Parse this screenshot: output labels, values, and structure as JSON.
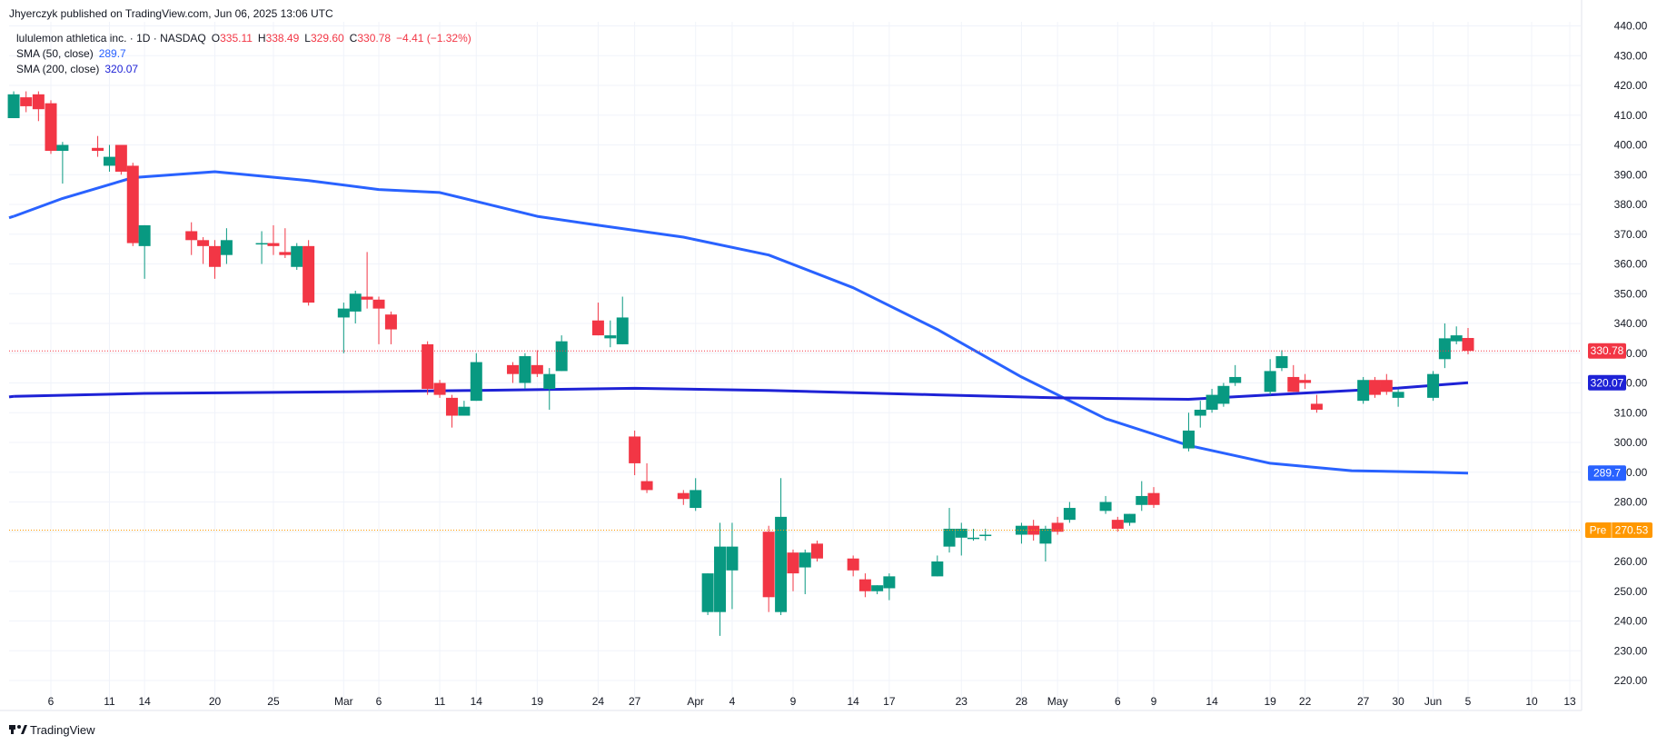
{
  "header": {
    "published": "Jhyerczyk published on TradingView.com, Jun 06, 2025 13:06 UTC",
    "symbol_line": "lululemon athletica inc. · 1D · NASDAQ",
    "ohlc": {
      "open": "335.11",
      "high": "338.49",
      "low": "329.60",
      "close": "330.78",
      "change": "−4.41 (−1.32%)"
    },
    "ohlc_prefixes": {
      "open": "O",
      "high": "H",
      "low": "L",
      "close": "C"
    },
    "sma50_label": "SMA (50, close)",
    "sma50_value": "289.7",
    "sma200_label": "SMA (200, close)",
    "sma200_value": "320.07"
  },
  "footer": {
    "logo_text": "TradingView"
  },
  "colors": {
    "up": "#26a69a",
    "down": "#f23645",
    "sma50": "#2962ff",
    "sma200": "#1e22d6",
    "last": "#f23645",
    "pre": "#ff9800",
    "grid": "#f0f3fa",
    "up_body": "#089981"
  },
  "tags": {
    "last": "330.78",
    "sma200": "320.07",
    "sma50": "289.7",
    "pre_label": "Pre",
    "pre_value": "270.53"
  },
  "chart_data": {
    "type": "candlestick",
    "title": "lululemon athletica inc. · 1D · NASDAQ",
    "ylim": [
      215,
      442
    ],
    "y_ticks": [
      220,
      230,
      240,
      250,
      260,
      270,
      280,
      290,
      300,
      310,
      320,
      330,
      340,
      350,
      360,
      370,
      380,
      390,
      400,
      410,
      420,
      430,
      440
    ],
    "x_ticks": [
      {
        "label": "6",
        "date": "2025-02-06"
      },
      {
        "label": "11",
        "date": "2025-02-11"
      },
      {
        "label": "14",
        "date": "2025-02-14"
      },
      {
        "label": "20",
        "date": "2025-02-20"
      },
      {
        "label": "25",
        "date": "2025-02-25"
      },
      {
        "label": "Mar",
        "date": "2025-03-03"
      },
      {
        "label": "6",
        "date": "2025-03-06"
      },
      {
        "label": "11",
        "date": "2025-03-11"
      },
      {
        "label": "14",
        "date": "2025-03-14"
      },
      {
        "label": "19",
        "date": "2025-03-19"
      },
      {
        "label": "24",
        "date": "2025-03-24"
      },
      {
        "label": "27",
        "date": "2025-03-27"
      },
      {
        "label": "Apr",
        "date": "2025-04-01"
      },
      {
        "label": "4",
        "date": "2025-04-04"
      },
      {
        "label": "9",
        "date": "2025-04-09"
      },
      {
        "label": "14",
        "date": "2025-04-14"
      },
      {
        "label": "17",
        "date": "2025-04-17"
      },
      {
        "label": "23",
        "date": "2025-04-23"
      },
      {
        "label": "28",
        "date": "2025-04-28"
      },
      {
        "label": "May",
        "date": "2025-05-01"
      },
      {
        "label": "6",
        "date": "2025-05-06"
      },
      {
        "label": "9",
        "date": "2025-05-09"
      },
      {
        "label": "14",
        "date": "2025-05-14"
      },
      {
        "label": "19",
        "date": "2025-05-19"
      },
      {
        "label": "22",
        "date": "2025-05-22"
      },
      {
        "label": "27",
        "date": "2025-05-27"
      },
      {
        "label": "30",
        "date": "2025-05-30"
      },
      {
        "label": "Jun",
        "date": "2025-06-02"
      },
      {
        "label": "5",
        "date": "2025-06-05"
      },
      {
        "label": "10",
        "date": "2025-06-10"
      },
      {
        "label": "13",
        "date": "2025-06-13"
      }
    ],
    "candles": [
      {
        "date": "2025-02-03",
        "o": 409,
        "h": 418,
        "l": 409,
        "c": 417
      },
      {
        "date": "2025-02-04",
        "o": 416,
        "h": 418,
        "l": 411,
        "c": 413
      },
      {
        "date": "2025-02-05",
        "o": 417,
        "h": 418,
        "l": 408,
        "c": 412
      },
      {
        "date": "2025-02-06",
        "o": 414,
        "h": 415,
        "l": 397,
        "c": 398
      },
      {
        "date": "2025-02-07",
        "o": 398,
        "h": 401,
        "l": 387,
        "c": 400
      },
      {
        "date": "2025-02-10",
        "o": 399,
        "h": 403,
        "l": 396,
        "c": 398
      },
      {
        "date": "2025-02-11",
        "o": 393,
        "h": 400,
        "l": 391,
        "c": 396
      },
      {
        "date": "2025-02-12",
        "o": 400,
        "h": 400,
        "l": 390,
        "c": 391
      },
      {
        "date": "2025-02-13",
        "o": 393,
        "h": 394,
        "l": 366,
        "c": 367
      },
      {
        "date": "2025-02-14",
        "o": 366,
        "h": 373,
        "l": 355,
        "c": 373
      },
      {
        "date": "2025-02-18",
        "o": 371,
        "h": 374,
        "l": 363,
        "c": 368
      },
      {
        "date": "2025-02-19",
        "o": 368,
        "h": 369,
        "l": 360,
        "c": 366
      },
      {
        "date": "2025-02-20",
        "o": 366,
        "h": 368,
        "l": 355,
        "c": 359
      },
      {
        "date": "2025-02-21",
        "o": 363,
        "h": 372,
        "l": 360,
        "c": 368
      },
      {
        "date": "2025-02-24",
        "o": 367,
        "h": 371,
        "l": 360,
        "c": 367
      },
      {
        "date": "2025-02-25",
        "o": 367,
        "h": 373,
        "l": 363,
        "c": 366
      },
      {
        "date": "2025-02-26",
        "o": 364,
        "h": 372,
        "l": 362,
        "c": 363
      },
      {
        "date": "2025-02-27",
        "o": 359,
        "h": 367,
        "l": 358,
        "c": 366
      },
      {
        "date": "2025-02-28",
        "o": 366,
        "h": 368,
        "l": 346,
        "c": 347
      },
      {
        "date": "2025-03-03",
        "o": 342,
        "h": 347,
        "l": 330,
        "c": 345
      },
      {
        "date": "2025-03-04",
        "o": 344,
        "h": 351,
        "l": 340,
        "c": 350
      },
      {
        "date": "2025-03-05",
        "o": 349,
        "h": 364,
        "l": 345,
        "c": 348
      },
      {
        "date": "2025-03-06",
        "o": 348,
        "h": 349,
        "l": 333,
        "c": 345
      },
      {
        "date": "2025-03-07",
        "o": 343,
        "h": 344,
        "l": 333,
        "c": 338
      },
      {
        "date": "2025-03-10",
        "o": 333,
        "h": 334,
        "l": 316,
        "c": 318
      },
      {
        "date": "2025-03-11",
        "o": 320,
        "h": 321,
        "l": 315,
        "c": 316
      },
      {
        "date": "2025-03-12",
        "o": 315,
        "h": 316,
        "l": 305,
        "c": 309
      },
      {
        "date": "2025-03-13",
        "o": 309,
        "h": 314,
        "l": 309,
        "c": 312
      },
      {
        "date": "2025-03-14",
        "o": 314,
        "h": 330,
        "l": 314,
        "c": 327
      },
      {
        "date": "2025-03-17",
        "o": 326,
        "h": 327,
        "l": 320,
        "c": 323
      },
      {
        "date": "2025-03-18",
        "o": 320,
        "h": 330,
        "l": 318,
        "c": 329
      },
      {
        "date": "2025-03-19",
        "o": 326,
        "h": 331,
        "l": 322,
        "c": 323
      },
      {
        "date": "2025-03-20",
        "o": 318,
        "h": 325,
        "l": 311,
        "c": 323
      },
      {
        "date": "2025-03-21",
        "o": 324,
        "h": 336,
        "l": 324,
        "c": 334
      },
      {
        "date": "2025-03-24",
        "o": 341,
        "h": 347,
        "l": 336,
        "c": 336
      },
      {
        "date": "2025-03-25",
        "o": 335,
        "h": 341,
        "l": 332,
        "c": 336
      },
      {
        "date": "2025-03-26",
        "o": 333,
        "h": 349,
        "l": 333,
        "c": 342
      },
      {
        "date": "2025-03-27",
        "o": 302,
        "h": 304,
        "l": 289,
        "c": 293
      },
      {
        "date": "2025-03-28",
        "o": 287,
        "h": 293,
        "l": 283,
        "c": 284
      },
      {
        "date": "2025-03-31",
        "o": 283,
        "h": 284,
        "l": 279,
        "c": 281
      },
      {
        "date": "2025-04-01",
        "o": 278,
        "h": 288,
        "l": 277,
        "c": 284
      },
      {
        "date": "2025-04-02",
        "o": 243,
        "h": 256,
        "l": 242,
        "c": 256
      },
      {
        "date": "2025-04-03",
        "o": 243,
        "h": 273,
        "l": 235,
        "c": 265
      },
      {
        "date": "2025-04-04",
        "o": 257,
        "h": 273,
        "l": 244,
        "c": 265
      },
      {
        "date": "2025-04-07",
        "o": 270,
        "h": 272,
        "l": 243,
        "c": 248
      },
      {
        "date": "2025-04-08",
        "o": 243,
        "h": 288,
        "l": 242,
        "c": 275
      },
      {
        "date": "2025-04-09",
        "o": 263,
        "h": 264,
        "l": 250,
        "c": 256
      },
      {
        "date": "2025-04-10",
        "o": 258,
        "h": 264,
        "l": 249,
        "c": 263
      },
      {
        "date": "2025-04-11",
        "o": 266,
        "h": 267,
        "l": 260,
        "c": 261
      },
      {
        "date": "2025-04-14",
        "o": 261,
        "h": 262,
        "l": 255,
        "c": 257
      },
      {
        "date": "2025-04-15",
        "o": 254,
        "h": 256,
        "l": 248,
        "c": 250
      },
      {
        "date": "2025-04-16",
        "o": 250,
        "h": 252,
        "l": 249,
        "c": 252
      },
      {
        "date": "2025-04-17",
        "o": 251,
        "h": 256,
        "l": 247,
        "c": 255
      },
      {
        "date": "2025-04-21",
        "o": 255,
        "h": 262,
        "l": 255,
        "c": 260
      },
      {
        "date": "2025-04-22",
        "o": 265,
        "h": 278,
        "l": 263,
        "c": 271
      },
      {
        "date": "2025-04-23",
        "o": 268,
        "h": 273,
        "l": 262,
        "c": 271
      },
      {
        "date": "2025-04-24",
        "o": 268,
        "h": 271,
        "l": 267,
        "c": 268
      },
      {
        "date": "2025-04-25",
        "o": 269,
        "h": 271,
        "l": 267,
        "c": 269
      },
      {
        "date": "2025-04-28",
        "o": 269,
        "h": 273,
        "l": 266,
        "c": 272
      },
      {
        "date": "2025-04-29",
        "o": 272,
        "h": 274,
        "l": 267,
        "c": 269
      },
      {
        "date": "2025-04-30",
        "o": 266,
        "h": 272,
        "l": 260,
        "c": 271
      },
      {
        "date": "2025-05-01",
        "o": 273,
        "h": 275,
        "l": 269,
        "c": 270
      },
      {
        "date": "2025-05-02",
        "o": 274,
        "h": 280,
        "l": 273,
        "c": 278
      },
      {
        "date": "2025-05-05",
        "o": 277,
        "h": 282,
        "l": 276,
        "c": 280
      },
      {
        "date": "2025-05-06",
        "o": 274,
        "h": 275,
        "l": 270,
        "c": 271
      },
      {
        "date": "2025-05-07",
        "o": 273,
        "h": 276,
        "l": 272,
        "c": 276
      },
      {
        "date": "2025-05-08",
        "o": 279,
        "h": 287,
        "l": 277,
        "c": 282
      },
      {
        "date": "2025-05-09",
        "o": 283,
        "h": 285,
        "l": 278,
        "c": 279
      },
      {
        "date": "2025-05-12",
        "o": 298,
        "h": 310,
        "l": 297,
        "c": 304
      },
      {
        "date": "2025-05-13",
        "o": 309,
        "h": 314,
        "l": 305,
        "c": 311
      },
      {
        "date": "2025-05-14",
        "o": 311,
        "h": 318,
        "l": 310,
        "c": 316
      },
      {
        "date": "2025-05-15",
        "o": 313,
        "h": 320,
        "l": 312,
        "c": 319
      },
      {
        "date": "2025-05-16",
        "o": 320,
        "h": 326,
        "l": 319,
        "c": 322
      },
      {
        "date": "2025-05-19",
        "o": 317,
        "h": 328,
        "l": 316,
        "c": 324
      },
      {
        "date": "2025-05-20",
        "o": 325,
        "h": 331,
        "l": 324,
        "c": 329
      },
      {
        "date": "2025-05-21",
        "o": 322,
        "h": 326,
        "l": 317,
        "c": 317
      },
      {
        "date": "2025-05-22",
        "o": 321,
        "h": 323,
        "l": 318,
        "c": 320
      },
      {
        "date": "2025-05-23",
        "o": 313,
        "h": 316,
        "l": 310,
        "c": 311
      },
      {
        "date": "2025-05-27",
        "o": 314,
        "h": 322,
        "l": 313,
        "c": 321
      },
      {
        "date": "2025-05-28",
        "o": 321,
        "h": 322,
        "l": 315,
        "c": 316
      },
      {
        "date": "2025-05-29",
        "o": 321,
        "h": 323,
        "l": 316,
        "c": 317
      },
      {
        "date": "2025-05-30",
        "o": 315,
        "h": 318,
        "l": 312,
        "c": 317
      },
      {
        "date": "2025-06-02",
        "o": 315,
        "h": 324,
        "l": 314,
        "c": 323
      },
      {
        "date": "2025-06-03",
        "o": 328,
        "h": 340,
        "l": 325,
        "c": 335
      },
      {
        "date": "2025-06-04",
        "o": 334,
        "h": 339,
        "l": 333,
        "c": 336
      },
      {
        "date": "2025-06-05",
        "o": 335.11,
        "h": 338.49,
        "l": 329.6,
        "c": 330.78
      }
    ],
    "series": [
      {
        "name": "SMA (50, close)",
        "points": [
          [
            "2025-02-03",
            376
          ],
          [
            "2025-02-07",
            382
          ],
          [
            "2025-02-13",
            389
          ],
          [
            "2025-02-20",
            391
          ],
          [
            "2025-02-28",
            388
          ],
          [
            "2025-03-06",
            385
          ],
          [
            "2025-03-11",
            384
          ],
          [
            "2025-03-14",
            381
          ],
          [
            "2025-03-19",
            376
          ],
          [
            "2025-03-24",
            373
          ],
          [
            "2025-03-31",
            369
          ],
          [
            "2025-04-07",
            363
          ],
          [
            "2025-04-14",
            352
          ],
          [
            "2025-04-21",
            338
          ],
          [
            "2025-04-28",
            322
          ],
          [
            "2025-05-05",
            308
          ],
          [
            "2025-05-12",
            299
          ],
          [
            "2025-05-19",
            293
          ],
          [
            "2025-05-26",
            290.5
          ],
          [
            "2025-06-02",
            290
          ],
          [
            "2025-06-05",
            289.7
          ]
        ]
      },
      {
        "name": "SMA (200, close)",
        "points": [
          [
            "2025-02-03",
            315.5
          ],
          [
            "2025-02-14",
            316.5
          ],
          [
            "2025-03-03",
            317
          ],
          [
            "2025-03-14",
            317.5
          ],
          [
            "2025-03-27",
            318.2
          ],
          [
            "2025-04-07",
            317.5
          ],
          [
            "2025-04-21",
            316
          ],
          [
            "2025-05-01",
            315
          ],
          [
            "2025-05-12",
            314.5
          ],
          [
            "2025-05-19",
            316
          ],
          [
            "2025-05-30",
            318.3
          ],
          [
            "2025-06-05",
            320.07
          ]
        ]
      }
    ],
    "last_price": 330.78,
    "premarket_price": 270.53
  }
}
